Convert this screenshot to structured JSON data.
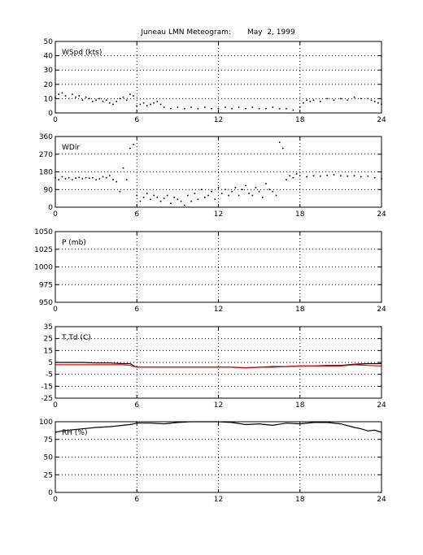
{
  "title": "Juneau LMN Meteogram:       May  2, 1999",
  "colors": {
    "primary": "#000000",
    "dewpoint": "#ff0000",
    "grid": "#000000"
  },
  "chart_data": [
    {
      "type": "scatter",
      "label": "WSpd (kts)",
      "xlim": [
        0,
        24
      ],
      "xticks": [
        0,
        6,
        12,
        18,
        24
      ],
      "ylim": [
        0,
        50
      ],
      "yticks": [
        0,
        10,
        20,
        30,
        40,
        50
      ],
      "grid": true,
      "series": [
        {
          "style": "dots",
          "x": [
            0,
            0.25,
            0.5,
            0.75,
            1,
            1.25,
            1.5,
            1.75,
            2,
            2.25,
            2.5,
            2.75,
            3,
            3.25,
            3.5,
            3.75,
            4,
            4.25,
            4.5,
            4.75,
            5,
            5.25,
            5.5,
            5.75,
            6,
            6.25,
            6.5,
            6.75,
            7,
            7.25,
            7.5,
            7.75,
            8,
            8.5,
            9,
            9.5,
            10,
            10.5,
            11,
            11.5,
            12,
            12.5,
            13,
            13.5,
            14,
            14.5,
            15,
            15.5,
            16,
            16.5,
            17,
            17.5,
            18,
            18.25,
            18.5,
            18.75,
            19,
            19.5,
            20,
            20.5,
            21,
            21.5,
            22,
            22.5,
            23,
            23.25,
            23.5,
            23.75,
            24
          ],
          "y": [
            11,
            13,
            14,
            12,
            10,
            13,
            11,
            12,
            9,
            11,
            10,
            8,
            9,
            10,
            8,
            9,
            7,
            6,
            8,
            10,
            11,
            9,
            13,
            12,
            5,
            6,
            7,
            5,
            6,
            7,
            8,
            6,
            4,
            3,
            4,
            3,
            4,
            3,
            4,
            3,
            3,
            4,
            3,
            4,
            3,
            4,
            3,
            3,
            4,
            3,
            3,
            2,
            4,
            7,
            9,
            8,
            9,
            8,
            10,
            9,
            10,
            9,
            11,
            10,
            10,
            9,
            8,
            7,
            6
          ]
        }
      ]
    },
    {
      "type": "scatter",
      "label": "WDir",
      "xlim": [
        0,
        24
      ],
      "xticks": [
        0,
        6,
        12,
        18,
        24
      ],
      "ylim": [
        0,
        360
      ],
      "yticks": [
        0,
        90,
        180,
        270,
        360
      ],
      "grid": true,
      "series": [
        {
          "style": "dots",
          "x": [
            0,
            0.25,
            0.5,
            0.75,
            1,
            1.25,
            1.5,
            1.75,
            2,
            2.25,
            2.5,
            2.75,
            3,
            3.25,
            3.5,
            3.75,
            4,
            4.25,
            4.5,
            4.75,
            5,
            5.25,
            5.5,
            5.75,
            6,
            6.25,
            6.5,
            6.75,
            7,
            7.25,
            7.5,
            7.75,
            8,
            8.25,
            8.5,
            8.75,
            9,
            9.25,
            9.5,
            9.75,
            10,
            10.25,
            10.5,
            10.75,
            11,
            11.25,
            11.5,
            11.75,
            12,
            12.25,
            12.5,
            12.75,
            13,
            13.25,
            13.5,
            13.75,
            14,
            14.25,
            14.5,
            14.75,
            15,
            15.25,
            15.5,
            15.75,
            16,
            16.25,
            16.5,
            16.75,
            17,
            17.25,
            17.5,
            17.75,
            18,
            18.5,
            19,
            19.5,
            20,
            20.5,
            21,
            21.5,
            22,
            22.5,
            23,
            23.5,
            24
          ],
          "y": [
            150,
            140,
            155,
            145,
            150,
            140,
            148,
            152,
            145,
            150,
            148,
            150,
            140,
            145,
            155,
            150,
            160,
            140,
            130,
            80,
            200,
            140,
            300,
            320,
            60,
            30,
            50,
            70,
            40,
            60,
            50,
            30,
            45,
            60,
            20,
            50,
            40,
            30,
            10,
            60,
            30,
            70,
            40,
            90,
            50,
            60,
            80,
            40,
            100,
            70,
            90,
            60,
            80,
            100,
            60,
            90,
            110,
            70,
            60,
            100,
            80,
            50,
            120,
            90,
            80,
            60,
            330,
            300,
            140,
            160,
            150,
            170,
            160,
            155,
            160,
            158,
            162,
            165,
            160,
            158,
            160,
            155,
            158,
            150,
            145
          ]
        }
      ]
    },
    {
      "type": "line",
      "label": "P (mb)",
      "xlim": [
        0,
        24
      ],
      "xticks": [
        0,
        6,
        12,
        18,
        24
      ],
      "ylim": [
        950,
        1050
      ],
      "yticks": [
        950,
        975,
        1000,
        1025,
        1050
      ],
      "grid": true,
      "series": []
    },
    {
      "type": "line",
      "label": "T,Td (C)",
      "xlim": [
        0,
        24
      ],
      "xticks": [
        0,
        6,
        12,
        18,
        24
      ],
      "ylim": [
        -25,
        35
      ],
      "yticks": [
        -25,
        -15,
        -5,
        5,
        15,
        25,
        35
      ],
      "grid": true,
      "series": [
        {
          "color": "#000000",
          "x": [
            0,
            1,
            2,
            3,
            4,
            5,
            5.5,
            5.8,
            6,
            7,
            8,
            9,
            10,
            11,
            12,
            13,
            14,
            15,
            16,
            17,
            18,
            19,
            20,
            21,
            22,
            23,
            24
          ],
          "y": [
            5,
            5,
            5,
            4.5,
            4.5,
            4,
            4,
            2,
            1,
            1,
            1,
            1,
            1,
            1,
            1,
            1,
            0.5,
            1,
            1.5,
            1.5,
            2,
            2,
            2.5,
            2.5,
            3.5,
            4,
            4
          ]
        },
        {
          "color": "#ff0000",
          "x": [
            0,
            1,
            2,
            3,
            4,
            5,
            5.5,
            5.8,
            6,
            7,
            8,
            9,
            10,
            11,
            12,
            13,
            14,
            15,
            16,
            17,
            18,
            19,
            20,
            21,
            22,
            23,
            24
          ],
          "y": [
            3,
            3,
            3,
            3,
            3,
            3,
            2.5,
            1.5,
            1,
            1,
            1,
            1,
            1,
            1,
            1,
            1,
            0.5,
            1,
            1,
            1.5,
            2,
            2,
            2,
            2,
            3,
            2.5,
            2
          ]
        }
      ]
    },
    {
      "type": "line",
      "label": "RH (%)",
      "xlim": [
        0,
        24
      ],
      "xticks": [
        0,
        6,
        12,
        18,
        24
      ],
      "ylim": [
        0,
        100
      ],
      "yticks": [
        0,
        25,
        50,
        75,
        100
      ],
      "grid": true,
      "series": [
        {
          "color": "#000000",
          "x": [
            0,
            0.5,
            1,
            2,
            3,
            4,
            5,
            5.5,
            6,
            7,
            8,
            9,
            10,
            11,
            12,
            13,
            14,
            15,
            16,
            17,
            18,
            19,
            20,
            21,
            22,
            22.5,
            23,
            23.5,
            24
          ],
          "y": [
            85,
            87,
            88,
            90,
            92,
            93,
            95,
            96,
            98,
            98,
            97,
            99,
            100,
            100,
            100,
            99,
            96,
            97,
            95,
            98,
            97,
            99,
            99,
            97,
            92,
            90,
            87,
            88,
            85
          ]
        }
      ]
    }
  ]
}
